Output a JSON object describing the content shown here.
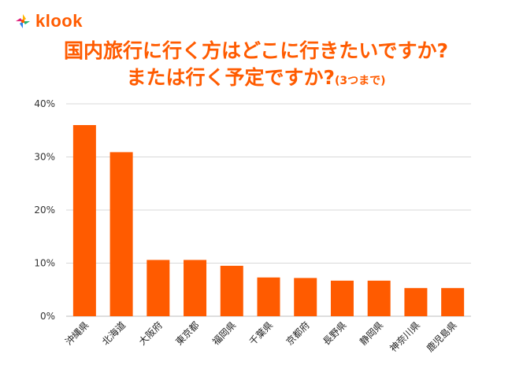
{
  "brand": {
    "name": "klook",
    "colors": [
      "#ff5b00",
      "#ffb400",
      "#21b573",
      "#2f80ed",
      "#e0247c"
    ]
  },
  "title": {
    "line1": "国内旅行に行く方はどこに行きたいですか?",
    "line2": "または行く予定ですか?",
    "note": "(3つまで)"
  },
  "accent_color": "#ff5b00",
  "chart_data": {
    "type": "bar",
    "categories": [
      "沖縄県",
      "北海道",
      "大阪府",
      "東京都",
      "福岡県",
      "千葉県",
      "京都府",
      "長野県",
      "静岡県",
      "神奈川県",
      "鹿児島県"
    ],
    "values": [
      36.0,
      30.9,
      10.6,
      10.6,
      9.5,
      7.3,
      7.2,
      6.7,
      6.7,
      5.3,
      5.3
    ],
    "unit": "%",
    "ylim": [
      0,
      40
    ],
    "yticks": [
      {
        "value": 0,
        "label": "0%"
      },
      {
        "value": 10,
        "label": "10%"
      },
      {
        "value": 20,
        "label": "20%"
      },
      {
        "value": 30,
        "label": "30%"
      },
      {
        "value": 40,
        "label": "40%"
      }
    ],
    "grid": true,
    "bar_color": "#ff5b00",
    "xlabel": "",
    "ylabel": ""
  }
}
